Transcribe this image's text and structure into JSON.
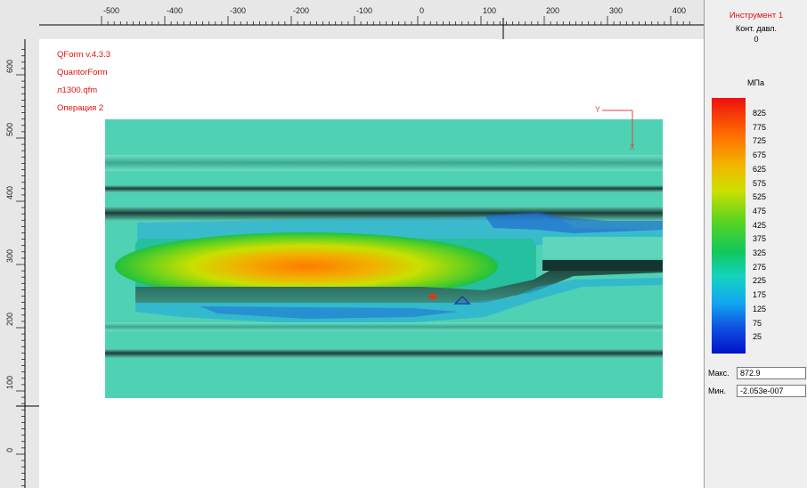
{
  "tool": {
    "title": "Инструмент 1",
    "subtitle": "Конт. давл.",
    "value": "0"
  },
  "info": {
    "version": "QForm v.4.3.3",
    "company": "QuantorForm",
    "file": "л1300.qfm",
    "operation": "Операция 2"
  },
  "legend": {
    "unit": "МПа",
    "labels": [
      "825",
      "775",
      "725",
      "675",
      "625",
      "575",
      "525",
      "475",
      "425",
      "375",
      "325",
      "275",
      "225",
      "175",
      "125",
      "75",
      "25"
    ]
  },
  "stats": {
    "max_label": "Макс.",
    "max_value": "872.9",
    "min_label": "Мин.",
    "min_value": "-2.053e-007"
  },
  "axes": {
    "x_label": "Y",
    "y_label": "X"
  },
  "ruler_top": {
    "labels": [
      "-500",
      "-400",
      "-300",
      "-200",
      "-100",
      "0",
      "100",
      "200",
      "300",
      "400"
    ]
  },
  "ruler_left": {
    "labels": [
      "600",
      "500",
      "400",
      "300",
      "200",
      "100",
      "0"
    ]
  },
  "colors": {
    "background_body": "#4cd3b4",
    "band_dark": "#1f4f48",
    "band_mid": "#3fa891",
    "info_text": "#e01010",
    "tool_title": "#e01010"
  }
}
